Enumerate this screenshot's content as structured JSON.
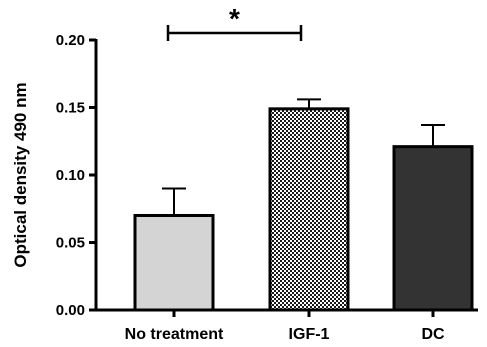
{
  "chart_data": {
    "type": "bar",
    "title": "",
    "xlabel": "",
    "ylabel": "Optical density 490 nm",
    "ylim": [
      0,
      0.2
    ],
    "yticks": [
      "0.00",
      "0.05",
      "0.10",
      "0.15",
      "0.20"
    ],
    "ytick_values": [
      0,
      0.05,
      0.1,
      0.15,
      0.2
    ],
    "grid": false,
    "categories": [
      "No treatment",
      "IGF-1",
      "DC"
    ],
    "values": [
      0.07,
      0.149,
      0.121
    ],
    "errors": [
      0.02,
      0.007,
      0.016
    ],
    "bar_styles": [
      {
        "fill": "#d4d4d4",
        "pattern": "solid"
      },
      {
        "fill": "#ffffff",
        "pattern": "checkerboard"
      },
      {
        "fill": "#333333",
        "pattern": "solid"
      }
    ],
    "significance": [
      {
        "from": "No treatment",
        "to": "IGF-1",
        "label": "*"
      }
    ]
  }
}
